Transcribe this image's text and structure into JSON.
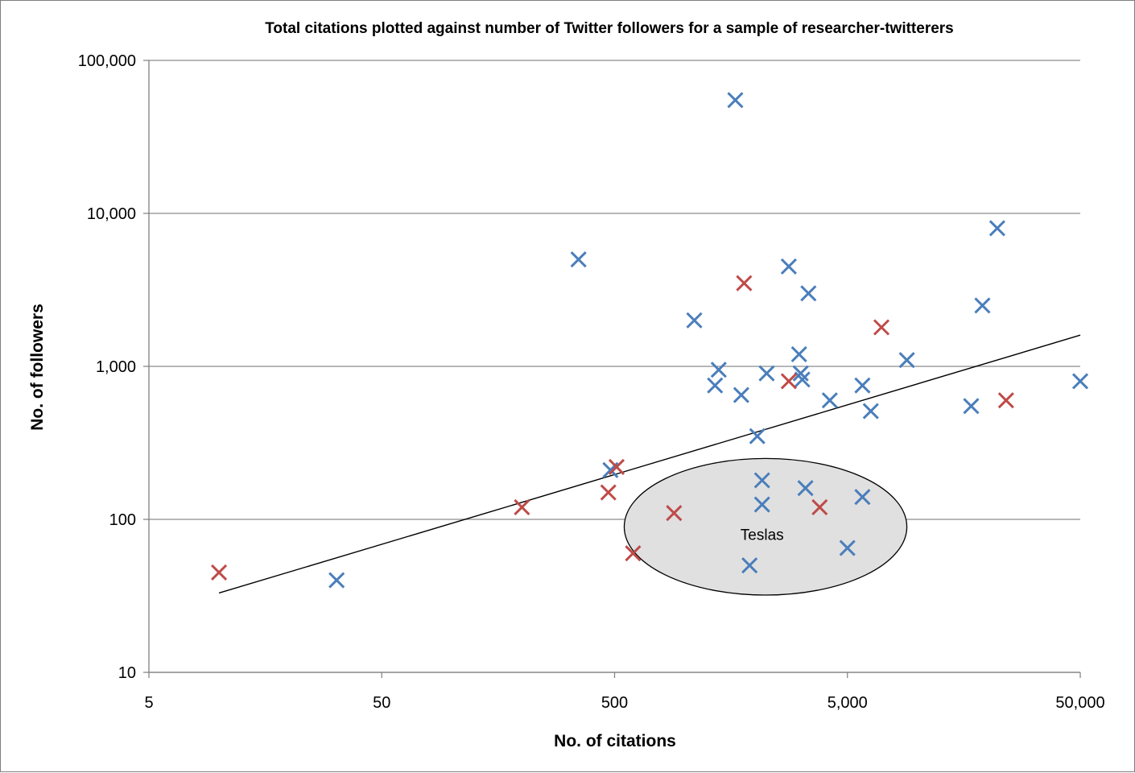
{
  "chart_data": {
    "type": "scatter",
    "title": "Total citations plotted against number of Twitter followers for a sample of researcher-twitterers",
    "xlabel": "No. of citations",
    "ylabel": "No. of followers",
    "x_scale": "log",
    "y_scale": "log",
    "xlim": [
      5,
      50000
    ],
    "ylim": [
      10,
      100000
    ],
    "x_ticks": [
      {
        "value": 5,
        "label": "5"
      },
      {
        "value": 50,
        "label": "50"
      },
      {
        "value": 500,
        "label": "500"
      },
      {
        "value": 5000,
        "label": "5,000"
      },
      {
        "value": 50000,
        "label": "50,000"
      }
    ],
    "y_ticks": [
      {
        "value": 10,
        "label": "10"
      },
      {
        "value": 100,
        "label": "100"
      },
      {
        "value": 1000,
        "label": "1,000"
      },
      {
        "value": 10000,
        "label": "10,000"
      },
      {
        "value": 100000,
        "label": "100,000"
      }
    ],
    "grid": "horizontal",
    "legend": "none",
    "marker": "x",
    "series": [
      {
        "color": "#4a7ebb",
        "points": [
          {
            "x": 32,
            "y": 40
          },
          {
            "x": 350,
            "y": 5000
          },
          {
            "x": 480,
            "y": 210
          },
          {
            "x": 1100,
            "y": 2000
          },
          {
            "x": 1350,
            "y": 750
          },
          {
            "x": 1400,
            "y": 950
          },
          {
            "x": 1650,
            "y": 55000
          },
          {
            "x": 1750,
            "y": 650
          },
          {
            "x": 2050,
            "y": 350
          },
          {
            "x": 2150,
            "y": 180
          },
          {
            "x": 2150,
            "y": 125
          },
          {
            "x": 1900,
            "y": 50
          },
          {
            "x": 2250,
            "y": 900
          },
          {
            "x": 2800,
            "y": 4500
          },
          {
            "x": 3100,
            "y": 1200
          },
          {
            "x": 3150,
            "y": 900
          },
          {
            "x": 3200,
            "y": 820
          },
          {
            "x": 3300,
            "y": 160
          },
          {
            "x": 3400,
            "y": 3000
          },
          {
            "x": 4200,
            "y": 600
          },
          {
            "x": 5000,
            "y": 65
          },
          {
            "x": 5800,
            "y": 750
          },
          {
            "x": 5800,
            "y": 140
          },
          {
            "x": 6300,
            "y": 510
          },
          {
            "x": 9000,
            "y": 1100
          },
          {
            "x": 17000,
            "y": 550
          },
          {
            "x": 19000,
            "y": 2500
          },
          {
            "x": 22000,
            "y": 8000
          },
          {
            "x": 50000,
            "y": 800
          }
        ]
      },
      {
        "color": "#be4b48",
        "points": [
          {
            "x": 10,
            "y": 45
          },
          {
            "x": 200,
            "y": 120
          },
          {
            "x": 470,
            "y": 150
          },
          {
            "x": 510,
            "y": 220
          },
          {
            "x": 600,
            "y": 60
          },
          {
            "x": 900,
            "y": 110
          },
          {
            "x": 1800,
            "y": 3500
          },
          {
            "x": 2800,
            "y": 800
          },
          {
            "x": 3800,
            "y": 120
          },
          {
            "x": 7000,
            "y": 1800
          },
          {
            "x": 24000,
            "y": 600
          }
        ]
      }
    ],
    "trendline": {
      "type": "power",
      "from": {
        "x": 10,
        "y": 33
      },
      "to": {
        "x": 50000,
        "y": 1600
      }
    },
    "annotation": {
      "text": "Teslas",
      "shape": "ellipse",
      "center": {
        "x": 2150,
        "y": 80
      },
      "x_range": [
        550,
        9000
      ],
      "y_range": [
        32,
        250
      ]
    }
  }
}
